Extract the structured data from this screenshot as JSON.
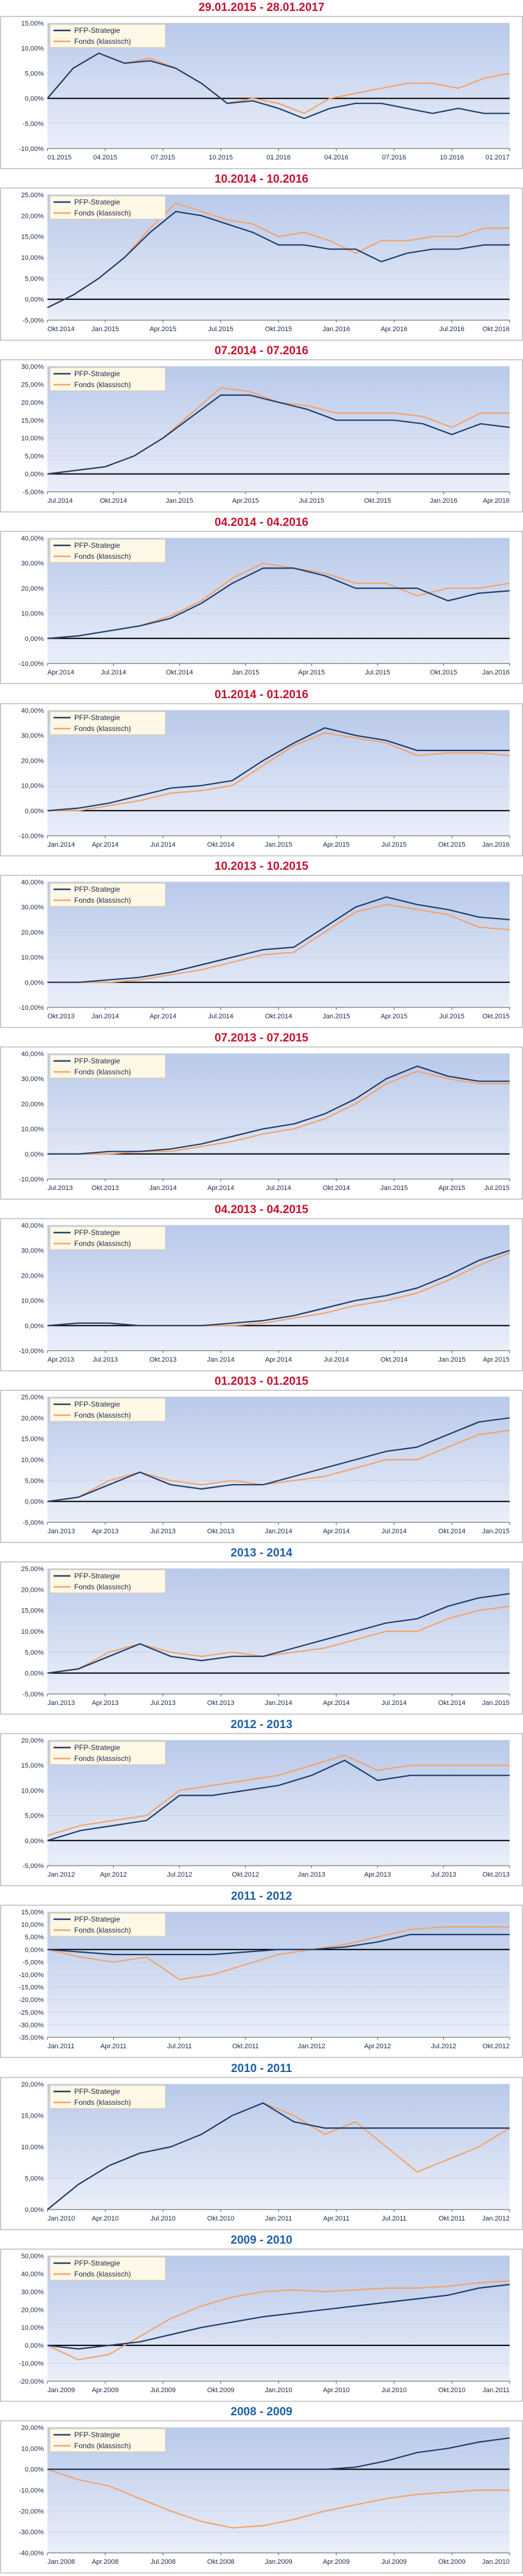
{
  "colors": {
    "strategy": "#1f3f6e",
    "fund": "#f4a36a",
    "red_title": "#c8102e",
    "blue_title": "#1f5fa6",
    "plot_top": "#b9c9ea",
    "plot_bottom": "#eaeff9",
    "zero_line": "#000000"
  },
  "legend": {
    "strategy": "PFP-Strategie",
    "fund": "Fonds (klassisch)"
  },
  "chart_data": [
    {
      "type": "line",
      "title": "29.01.2015 - 28.01.2017",
      "title_color": "red",
      "ylim": [
        -10,
        15
      ],
      "yticks": [
        "15,00%",
        "10,00%",
        "5,00%",
        "0,00%",
        "-5,00%",
        "-10,00%"
      ],
      "xticks": [
        "01.2015",
        "04.2015",
        "07.2015",
        "10.2015",
        "01.2016",
        "04.2016",
        "07.2016",
        "10.2016",
        "01.2017"
      ],
      "series": [
        {
          "name": "PFP-Strategie",
          "values": [
            0,
            6,
            9,
            7,
            7.5,
            6,
            3,
            -1,
            -0.5,
            -2,
            -4,
            -2,
            -1,
            -1,
            -2,
            -3,
            -2,
            -3,
            -3
          ]
        },
        {
          "name": "Fonds (klassisch)",
          "values": [
            0,
            6,
            9,
            7,
            8,
            6,
            3,
            -1,
            0,
            -1,
            -3,
            0,
            1,
            2,
            3,
            3,
            2,
            4,
            5
          ]
        }
      ]
    },
    {
      "type": "line",
      "title": "10.2014 - 10.2016",
      "title_color": "red",
      "ylim": [
        -5,
        25
      ],
      "yticks": [
        "25,00%",
        "20,00%",
        "15,00%",
        "10,00%",
        "5,00%",
        "0,00%",
        "-5,00%"
      ],
      "xticks": [
        "Okt.2014",
        "Jan.2015",
        "Apr.2015",
        "Jul.2015",
        "Okt.2015",
        "Jan.2016",
        "Apr.2016",
        "Jul.2016",
        "Okt.2016"
      ],
      "series": [
        {
          "name": "PFP-Strategie",
          "values": [
            -2,
            1,
            5,
            10,
            16,
            21,
            20,
            18,
            16,
            13,
            13,
            12,
            12,
            9,
            11,
            12,
            12,
            13,
            13
          ]
        },
        {
          "name": "Fonds (klassisch)",
          "values": [
            -2,
            1,
            5,
            10,
            17,
            23,
            21,
            19,
            18,
            15,
            16,
            14,
            11,
            14,
            14,
            15,
            15,
            17,
            17
          ]
        }
      ]
    },
    {
      "type": "line",
      "title": "07.2014 - 07.2016",
      "title_color": "red",
      "ylim": [
        -5,
        30
      ],
      "yticks": [
        "30,00%",
        "25,00%",
        "20,00%",
        "15,00%",
        "10,00%",
        "5,00%",
        "0,00%",
        "-5,00%"
      ],
      "xticks": [
        "Jul.2014",
        "Okt.2014",
        "Jan.2015",
        "Apr.2015",
        "Jul.2015",
        "Okt.2015",
        "Jan.2016",
        "Apr.2016"
      ],
      "series": [
        {
          "name": "PFP-Strategie",
          "values": [
            0,
            1,
            2,
            5,
            10,
            16,
            22,
            22,
            20,
            18,
            15,
            15,
            15,
            14,
            11,
            14,
            13
          ]
        },
        {
          "name": "Fonds (klassisch)",
          "values": [
            0,
            1,
            2,
            5,
            10,
            17,
            24,
            23,
            20,
            19,
            17,
            17,
            17,
            16,
            13,
            17,
            17
          ]
        }
      ]
    },
    {
      "type": "line",
      "title": "04.2014 - 04.2016",
      "title_color": "red",
      "ylim": [
        -10,
        40
      ],
      "yticks": [
        "40,00%",
        "30,00%",
        "20,00%",
        "10,00%",
        "0,00%",
        "-10,00%"
      ],
      "xticks": [
        "Apr.2014",
        "Jul.2014",
        "Okt.2014",
        "Jan.2015",
        "Apr.2015",
        "Jul.2015",
        "Okt.2015",
        "Jan.2016"
      ],
      "series": [
        {
          "name": "PFP-Strategie",
          "values": [
            0,
            1,
            3,
            5,
            8,
            14,
            22,
            28,
            28,
            25,
            20,
            20,
            20,
            15,
            18,
            19
          ]
        },
        {
          "name": "Fonds (klassisch)",
          "values": [
            0,
            1,
            3,
            5,
            9,
            15,
            24,
            30,
            28,
            26,
            22,
            22,
            17,
            20,
            20,
            22
          ]
        }
      ]
    },
    {
      "type": "line",
      "title": "01.2014 - 01.2016",
      "title_color": "red",
      "ylim": [
        -10,
        40
      ],
      "yticks": [
        "40,00%",
        "30,00%",
        "20,00%",
        "10,00%",
        "0,00%",
        "-10,00%"
      ],
      "xticks": [
        "Jan.2014",
        "Apr.2014",
        "Jul.2014",
        "Okt.2014",
        "Jan.2015",
        "Apr.2015",
        "Jul.2015",
        "Okt.2015",
        "Jan.2016"
      ],
      "series": [
        {
          "name": "PFP-Strategie",
          "values": [
            0,
            1,
            3,
            6,
            9,
            10,
            12,
            20,
            27,
            33,
            30,
            28,
            24,
            24,
            24,
            24
          ]
        },
        {
          "name": "Fonds (klassisch)",
          "values": [
            0,
            0,
            2,
            4,
            7,
            8,
            10,
            18,
            26,
            31,
            29,
            27,
            22,
            23,
            23,
            22
          ]
        }
      ]
    },
    {
      "type": "line",
      "title": "10.2013 - 10.2015",
      "title_color": "red",
      "ylim": [
        -10,
        40
      ],
      "yticks": [
        "40,00%",
        "30,00%",
        "20,00%",
        "10,00%",
        "0,00%",
        "-10,00%"
      ],
      "xticks": [
        "Okt.2013",
        "Jan.2014",
        "Apr.2014",
        "Jul.2014",
        "Okt.2014",
        "Jan.2015",
        "Apr.2015",
        "Jul.2015",
        "Okt.2015"
      ],
      "series": [
        {
          "name": "PFP-Strategie",
          "values": [
            0,
            0,
            1,
            2,
            4,
            7,
            10,
            13,
            14,
            22,
            30,
            34,
            31,
            29,
            26,
            25
          ]
        },
        {
          "name": "Fonds (klassisch)",
          "values": [
            0,
            0,
            0,
            1,
            3,
            5,
            8,
            11,
            12,
            20,
            28,
            31,
            29,
            27,
            22,
            21
          ]
        }
      ]
    },
    {
      "type": "line",
      "title": "07.2013 - 07.2015",
      "title_color": "red",
      "ylim": [
        -10,
        40
      ],
      "yticks": [
        "40,00%",
        "30,00%",
        "20,00%",
        "10,00%",
        "0,00%",
        "-10,00%"
      ],
      "xticks": [
        "Jul.2013",
        "Okt.2013",
        "Jan.2014",
        "Apr.2014",
        "Jul.2014",
        "Okt.2014",
        "Jan.2015",
        "Apr.2015",
        "Jul.2015"
      ],
      "series": [
        {
          "name": "PFP-Strategie",
          "values": [
            0,
            0,
            1,
            1,
            2,
            4,
            7,
            10,
            12,
            16,
            22,
            30,
            35,
            31,
            29,
            29
          ]
        },
        {
          "name": "Fonds (klassisch)",
          "values": [
            0,
            0,
            0,
            1,
            1,
            3,
            5,
            8,
            10,
            14,
            20,
            28,
            33,
            30,
            28,
            28
          ]
        }
      ]
    },
    {
      "type": "line",
      "title": "04.2013 - 04.2015",
      "title_color": "red",
      "ylim": [
        -10,
        40
      ],
      "yticks": [
        "40,00%",
        "30,00%",
        "20,00%",
        "10,00%",
        "0,00%",
        "-10,00%"
      ],
      "xticks": [
        "Apr.2013",
        "Jul.2013",
        "Okt.2013",
        "Jan.2014",
        "Apr.2014",
        "Jul.2014",
        "Okt.2014",
        "Jan.2015",
        "Apr.2015"
      ],
      "series": [
        {
          "name": "PFP-Strategie",
          "values": [
            0,
            1,
            1,
            0,
            0,
            0,
            1,
            2,
            4,
            7,
            10,
            12,
            15,
            20,
            26,
            30
          ]
        },
        {
          "name": "Fonds (klassisch)",
          "values": [
            0,
            1,
            1,
            0,
            0,
            0,
            0,
            1,
            3,
            5,
            8,
            10,
            13,
            18,
            24,
            29
          ]
        }
      ]
    },
    {
      "type": "line",
      "title": "01.2013 - 01.2015",
      "title_color": "red",
      "ylim": [
        -5,
        25
      ],
      "yticks": [
        "25,00%",
        "20,00%",
        "15,00%",
        "10,00%",
        "5,00%",
        "0,00%",
        "-5,00%"
      ],
      "xticks": [
        "Jan.2013",
        "Apr.2013",
        "Jul.2013",
        "Okt.2013",
        "Jan.2014",
        "Apr.2014",
        "Jul.2014",
        "Okt.2014",
        "Jan.2015"
      ],
      "series": [
        {
          "name": "PFP-Strategie",
          "values": [
            0,
            1,
            4,
            7,
            4,
            3,
            4,
            4,
            6,
            8,
            10,
            12,
            13,
            16,
            19,
            20
          ]
        },
        {
          "name": "Fonds (klassisch)",
          "values": [
            0,
            1,
            5,
            7,
            5,
            4,
            5,
            4,
            5,
            6,
            8,
            10,
            10,
            13,
            16,
            17
          ]
        }
      ]
    },
    {
      "type": "line",
      "title": "2013 - 2014",
      "title_color": "blue",
      "ylim": [
        -5,
        25
      ],
      "yticks": [
        "25,00%",
        "20,00%",
        "15,00%",
        "10,00%",
        "5,00%",
        "0,00%",
        "-5,00%"
      ],
      "xticks": [
        "Jan.2013",
        "Apr.2013",
        "Jul.2013",
        "Okt.2013",
        "Jan.2014",
        "Apr.2014",
        "Jul.2014",
        "Okt.2014",
        "Jan.2015"
      ],
      "series": [
        {
          "name": "PFP-Strategie",
          "values": [
            0,
            1,
            4,
            7,
            4,
            3,
            4,
            4,
            6,
            8,
            10,
            12,
            13,
            16,
            18,
            19
          ]
        },
        {
          "name": "Fonds (klassisch)",
          "values": [
            0,
            1,
            5,
            7,
            5,
            4,
            5,
            4,
            5,
            6,
            8,
            10,
            10,
            13,
            15,
            16
          ]
        }
      ]
    },
    {
      "type": "line",
      "title": "2012 - 2013",
      "title_color": "blue",
      "ylim": [
        -5,
        20
      ],
      "yticks": [
        "20,00%",
        "15,00%",
        "10,00%",
        "5,00%",
        "0,00%",
        "-5,00%"
      ],
      "xticks": [
        "Jan.2012",
        "Apr.2012",
        "Jul.2012",
        "Okt.2012",
        "Jan.2013",
        "Apr.2013",
        "Jul.2013",
        "Okt.2013"
      ],
      "series": [
        {
          "name": "PFP-Strategie",
          "values": [
            0,
            2,
            3,
            4,
            9,
            9,
            10,
            11,
            13,
            16,
            12,
            13,
            13,
            13,
            13
          ]
        },
        {
          "name": "Fonds (klassisch)",
          "values": [
            1,
            3,
            4,
            5,
            10,
            11,
            12,
            13,
            15,
            17,
            14,
            15,
            15,
            15,
            15
          ]
        }
      ]
    },
    {
      "type": "line",
      "title": "2011 - 2012",
      "title_color": "blue",
      "ylim": [
        -35,
        15
      ],
      "yticks": [
        "15,00%",
        "10,00%",
        "5,00%",
        "0,00%",
        "-5,00%",
        "-10,00%",
        "-15,00%",
        "-20,00%",
        "-25,00%",
        "-30,00%",
        "-35,00%"
      ],
      "xticks": [
        "Jan.2011",
        "Apr.2011",
        "Jul.2011",
        "Okt.2011",
        "Jan.2012",
        "Apr.2012",
        "Jul.2012",
        "Okt.2012"
      ],
      "series": [
        {
          "name": "PFP-Strategie",
          "values": [
            0,
            -1,
            -2,
            -2,
            -2,
            -2,
            -1,
            0,
            0,
            1,
            3,
            6,
            6,
            6,
            6
          ]
        },
        {
          "name": "Fonds (klassisch)",
          "values": [
            0,
            -3,
            -5,
            -3,
            -12,
            -10,
            -6,
            -2,
            0,
            2,
            5,
            8,
            9,
            9,
            9
          ]
        }
      ]
    },
    {
      "type": "line",
      "title": "2010 - 2011",
      "title_color": "blue",
      "ylim": [
        0,
        20
      ],
      "yticks": [
        "20,00%",
        "15,00%",
        "10,00%",
        "5,00%",
        "0,00%"
      ],
      "xticks": [
        "Jan.2010",
        "Apr.2010",
        "Jul.2010",
        "Okt.2010",
        "Jan.2011",
        "Apr.2011",
        "Jul.2011",
        "Okt.2011",
        "Jan.2012"
      ],
      "series": [
        {
          "name": "PFP-Strategie",
          "values": [
            0,
            4,
            7,
            9,
            10,
            12,
            15,
            17,
            14,
            13,
            13,
            13,
            13,
            13,
            13,
            13
          ]
        },
        {
          "name": "Fonds (klassisch)",
          "values": [
            0,
            4,
            7,
            9,
            10,
            12,
            15,
            17,
            15,
            12,
            14,
            10,
            6,
            8,
            10,
            13
          ]
        }
      ]
    },
    {
      "type": "line",
      "title": "2009 - 2010",
      "title_color": "blue",
      "ylim": [
        -20,
        50
      ],
      "yticks": [
        "50,00%",
        "40,00%",
        "30,00%",
        "20,00%",
        "10,00%",
        "0,00%",
        "-10,00%",
        "-20,00%"
      ],
      "xticks": [
        "Jan.2009",
        "Apr.2009",
        "Jul.2009",
        "Okt.2009",
        "Jan.2010",
        "Apr.2010",
        "Jul.2010",
        "Okt.2010",
        "Jan.2011"
      ],
      "series": [
        {
          "name": "PFP-Strategie",
          "values": [
            0,
            -2,
            0,
            2,
            6,
            10,
            13,
            16,
            18,
            20,
            22,
            24,
            26,
            28,
            32,
            34
          ]
        },
        {
          "name": "Fonds (klassisch)",
          "values": [
            0,
            -8,
            -5,
            5,
            15,
            22,
            27,
            30,
            31,
            30,
            31,
            32,
            32,
            33,
            35,
            36
          ]
        }
      ]
    },
    {
      "type": "line",
      "title": "2008 - 2009",
      "title_color": "blue",
      "ylim": [
        -40,
        20
      ],
      "yticks": [
        "20,00%",
        "10,00%",
        "0,00%",
        "-10,00%",
        "-20,00%",
        "-30,00%",
        "-40,00%"
      ],
      "xticks": [
        "Jan.2008",
        "Apr.2008",
        "Jul.2008",
        "Okt.2008",
        "Jan.2009",
        "Apr.2009",
        "Jul.2009",
        "Okt.2009",
        "Jan.2010"
      ],
      "series": [
        {
          "name": "PFP-Strategie",
          "values": [
            0,
            0,
            0,
            0,
            0,
            0,
            0,
            0,
            0,
            0,
            1,
            4,
            8,
            10,
            13,
            15
          ]
        },
        {
          "name": "Fonds (klassisch)",
          "values": [
            0,
            -5,
            -8,
            -14,
            -20,
            -25,
            -28,
            -27,
            -24,
            -20,
            -17,
            -14,
            -12,
            -11,
            -10,
            -10
          ]
        }
      ]
    }
  ]
}
